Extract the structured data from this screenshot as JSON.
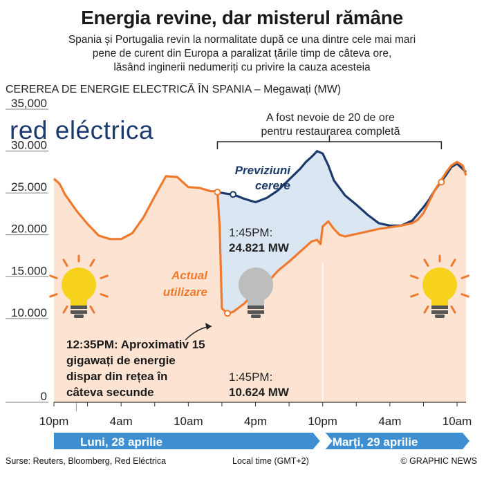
{
  "title": "Energia revine, dar misterul rămâne",
  "subtitle_lines": [
    "Spania și Portugalia revin la normalitate după ce una dintre cele mai mari",
    "pene de curent din Europa a paralizat țările timp de câteva ore,",
    "lăsând inginerii nedumeriți cu privire la cauza acesteia"
  ],
  "chart_heading": "CEREREA DE ENERGIE ELECTRICĂ ÎN SPANIA – Megawați (MW)",
  "logo_text": "red eléctrica",
  "footer": {
    "source": "Surse: Reuters, Bloomberg, Red Eléctrica",
    "timezone": "Local time (GMT+2)",
    "credit": "© GRAPHIC NEWS"
  },
  "colors": {
    "forecast": "#1b3a6b",
    "actual": "#ef7a2e",
    "forecast_fill": "#dbe6f3",
    "actual_fill": "#fde3d2",
    "day_bar": "#3d8fd1",
    "bulb_on": "#f7d21c",
    "bulb_off": "#bdbdbd"
  },
  "chart_data": {
    "type": "area",
    "title": "CEREREA DE ENERGIE ELECTRICĂ ÎN SPANIA – Megawați (MW)",
    "ylabel": "Megawați (MW)",
    "ylim": [
      0,
      35000
    ],
    "y_ticks": [
      0,
      10000,
      15000,
      20000,
      25000,
      30000,
      35000
    ],
    "y_tick_labels": [
      "0",
      "10.000",
      "15.000",
      "20.000",
      "25.000",
      "30.000",
      "35,000"
    ],
    "x_unit": "hours from 10pm 27 April",
    "x_ticks": [
      0,
      6,
      12,
      18,
      24,
      30,
      36
    ],
    "x_tick_labels": [
      "10pm",
      "4am",
      "10am",
      "4pm",
      "10pm",
      "4am",
      "10am"
    ],
    "grid": false,
    "series": [
      {
        "name": "Previziuni cerere",
        "x": [
          14.6,
          15.5,
          16.0,
          17.0,
          18.0,
          19.0,
          20.0,
          21.0,
          22.0,
          22.5,
          23.0,
          23.5,
          24.0,
          24.5,
          25.0,
          26.0,
          27.0,
          28.0,
          29.0,
          30.0,
          31.0,
          32.0,
          33.0,
          33.5,
          34.0,
          35.0,
          35.5,
          36.0,
          36.8
        ],
        "y": [
          25100,
          24900,
          24821,
          24300,
          23900,
          24400,
          25300,
          26600,
          27900,
          28700,
          29300,
          30000,
          29700,
          28300,
          26500,
          24700,
          23600,
          22400,
          21400,
          21100,
          21100,
          21700,
          23300,
          24200,
          25300,
          27100,
          28100,
          28500,
          27500
        ]
      },
      {
        "name": "Actual utilizare",
        "x": [
          0.0,
          0.5,
          1.0,
          2.0,
          3.0,
          4.0,
          5.0,
          6.0,
          7.0,
          8.0,
          9.0,
          10.0,
          11.0,
          12.0,
          13.0,
          14.0,
          14.5,
          14.6,
          14.8,
          15.0,
          15.5,
          16.0,
          17.0,
          18.0,
          19.0,
          20.0,
          21.0,
          22.0,
          22.5,
          23.0,
          23.5,
          23.8,
          24.0,
          24.5,
          25.0,
          25.5,
          26.0,
          27.0,
          28.0,
          29.0,
          30.0,
          31.0,
          32.0,
          32.5,
          33.0,
          34.0,
          35.0,
          35.5,
          36.0,
          36.5,
          36.8
        ],
        "y": [
          26700,
          26100,
          24800,
          22900,
          21300,
          19900,
          19500,
          19500,
          20200,
          22100,
          24600,
          27000,
          26900,
          25700,
          25600,
          25200,
          25200,
          25100,
          21000,
          11200,
          10624,
          10800,
          11800,
          13200,
          14200,
          15700,
          16800,
          18000,
          18600,
          19200,
          19400,
          18900,
          21000,
          21600,
          20700,
          20000,
          19800,
          20100,
          20400,
          20700,
          20900,
          21100,
          21400,
          21800,
          22600,
          25300,
          27400,
          28300,
          28700,
          28300,
          27100
        ]
      }
    ],
    "annotations": [
      {
        "text_lines": [
          "1:45PM:",
          "24.821 MW"
        ],
        "x": 16.0,
        "y": 24821
      },
      {
        "text_lines": [
          "1:45PM:",
          "10.624 MW"
        ],
        "x": 16.0,
        "y": 10624
      },
      {
        "text_lines": [
          "12:35PM: Aproximativ 15",
          "gigawați de energie",
          "dispar din rețea în",
          "câteva secunde"
        ]
      },
      {
        "text_lines": [
          "A fost nevoie de 20 de ore",
          "pentru restaurarea completă"
        ],
        "x_range": [
          14.6,
          34.6
        ]
      }
    ],
    "series_labels": {
      "forecast": [
        "Previziuni",
        "cerere"
      ],
      "actual": [
        "Actual",
        "utilizare"
      ]
    },
    "days": [
      {
        "label": "Luni, 28 aprilie",
        "x_range": [
          2,
          24
        ]
      },
      {
        "label": "Marți, 29 aprilie",
        "x_range": [
          24,
          36
        ]
      }
    ]
  }
}
